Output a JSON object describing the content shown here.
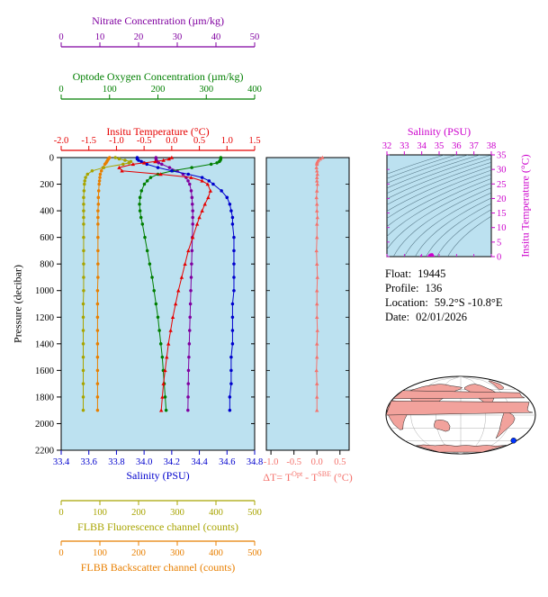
{
  "info": {
    "rows": [
      {
        "label": "Float:",
        "value": "19445"
      },
      {
        "label": "Profile:",
        "value": "136"
      },
      {
        "label": "Location:",
        "value": "59.2°S -10.8°E"
      },
      {
        "label": "Date:",
        "value": "02/01/2026"
      }
    ]
  },
  "chart_data": {
    "type": "line",
    "description": "Float vertical profiles vs pressure, temperature-difference profile, T-S diagram with isopycnals, and float location map",
    "pressure_levels": [
      0,
      10,
      20,
      30,
      40,
      50,
      75,
      100,
      125,
      150,
      175,
      200,
      250,
      300,
      350,
      400,
      450,
      500,
      600,
      700,
      800,
      900,
      1000,
      1100,
      1200,
      1300,
      1400,
      1500,
      1600,
      1700,
      1800,
      1900
    ],
    "pressure_axis": {
      "label": "Pressure (decibar)",
      "lim": [
        0,
        2200
      ],
      "ticks": [
        0,
        200,
        400,
        600,
        800,
        1000,
        1200,
        1400,
        1600,
        1800,
        2000,
        2200
      ]
    },
    "profile_plot": {
      "background": "#bce1f0",
      "x_axes": [
        {
          "id": "nitrate",
          "label": "Nitrate Concentration (µm/kg)",
          "color": "#8000a0",
          "lim": [
            0,
            50
          ],
          "ticks": [
            0,
            10,
            20,
            30,
            40,
            50
          ],
          "decimals": 0
        },
        {
          "id": "oxygen",
          "label": "Optode Oxygen Concentration (µm/kg)",
          "color": "#007f00",
          "lim": [
            0,
            400
          ],
          "ticks": [
            0,
            100,
            200,
            300,
            400
          ],
          "decimals": 0
        },
        {
          "id": "temperature",
          "label": "Insitu Temperature (°C)",
          "color": "#e60000",
          "lim": [
            -2,
            1.5
          ],
          "ticks": [
            -2,
            -1.5,
            -1,
            -0.5,
            0,
            0.5,
            1,
            1.5
          ],
          "decimals": 1
        },
        {
          "id": "salinity",
          "label": "Salinity (PSU)",
          "color": "#0000cd",
          "lim": [
            33.4,
            34.8
          ],
          "ticks": [
            33.4,
            33.6,
            33.8,
            34,
            34.2,
            34.4,
            34.6,
            34.8
          ],
          "decimals": 1
        },
        {
          "id": "fluorescence",
          "label": "FLBB Fluorescence channel (counts)",
          "color": "#a8a400",
          "lim": [
            0,
            500
          ],
          "ticks": [
            0,
            100,
            200,
            300,
            400,
            500
          ],
          "decimals": 0
        },
        {
          "id": "backscatter",
          "label": "FLBB Backscatter channel (counts)",
          "color": "#e87f00",
          "lim": [
            0,
            500
          ],
          "ticks": [
            0,
            100,
            200,
            300,
            400,
            500
          ],
          "decimals": 0
        }
      ],
      "series": [
        {
          "axis": "backscatter",
          "marker": "circle",
          "values": [
            125,
            122,
            120,
            118,
            116,
            113,
            108,
            104,
            101,
            100,
            99,
            98,
            97,
            96,
            96,
            95,
            95,
            95,
            95,
            95,
            95,
            95,
            94,
            94,
            94,
            94,
            94,
            94,
            94,
            94,
            94,
            94
          ]
        },
        {
          "axis": "fluorescence",
          "marker": "circle",
          "values": [
            140,
            150,
            165,
            180,
            175,
            160,
            110,
            80,
            68,
            63,
            61,
            60,
            59,
            58,
            58,
            58,
            58,
            58,
            58,
            58,
            58,
            58,
            58,
            57,
            57,
            57,
            57,
            57,
            57,
            57,
            57,
            57
          ]
        },
        {
          "axis": "nitrate",
          "marker": "circle",
          "values": [
            24.5,
            24.5,
            24.6,
            24.8,
            25.2,
            26,
            28,
            30,
            31.5,
            32.3,
            32.8,
            33.2,
            33.6,
            33.8,
            33.9,
            34,
            34,
            34,
            33.9,
            33.8,
            33.7,
            33.6,
            33.5,
            33.4,
            33.3,
            33.2,
            33.1,
            33,
            32.9,
            32.85,
            32.8,
            32.75
          ]
        },
        {
          "axis": "oxygen",
          "marker": "circle",
          "values": [
            330,
            330,
            329,
            327,
            322,
            310,
            270,
            230,
            200,
            185,
            178,
            172,
            166,
            163,
            162,
            163,
            165,
            168,
            173,
            178,
            183,
            188,
            192,
            196,
            200,
            203,
            206,
            209,
            211,
            213,
            215,
            217
          ]
        },
        {
          "axis": "salinity",
          "marker": "circle",
          "values": [
            33.95,
            33.95,
            33.96,
            33.98,
            34,
            34.02,
            34.1,
            34.2,
            34.32,
            34.42,
            34.47,
            34.5,
            34.56,
            34.6,
            34.62,
            34.63,
            34.64,
            34.64,
            34.65,
            34.65,
            34.65,
            34.65,
            34.65,
            34.64,
            34.64,
            34.64,
            34.64,
            34.63,
            34.63,
            34.63,
            34.62,
            34.62
          ]
        },
        {
          "axis": "temperature",
          "marker": "triangle",
          "values": [
            0,
            -0.05,
            -0.15,
            -0.3,
            -0.5,
            -0.7,
            -0.95,
            -0.9,
            -0.2,
            0.35,
            0.55,
            0.65,
            0.7,
            0.66,
            0.6,
            0.55,
            0.5,
            0.46,
            0.38,
            0.3,
            0.24,
            0.18,
            0.12,
            0.07,
            0.02,
            -0.02,
            -0.06,
            -0.09,
            -0.12,
            -0.15,
            -0.17,
            -0.19
          ]
        }
      ]
    },
    "delta_plot": {
      "xlabel_parts": {
        "p1": "ΔT= T",
        "s1": "Opt",
        "p2": " - T",
        "s2": "SBE",
        "p3": " (°C)"
      },
      "color": "#f4736d",
      "background": "#bce1f0",
      "lim": [
        -1.1,
        0.7
      ],
      "ticks": [
        -1,
        -0.5,
        0,
        0.5
      ],
      "values": [
        0.12,
        0.07,
        0.03,
        0.01,
        0,
        0,
        -0.01,
        0,
        0.01,
        0,
        0,
        0.01,
        0,
        -0.01,
        0,
        0,
        0.01,
        0,
        0,
        -0.01,
        0,
        0.01,
        0,
        0,
        0,
        0.01,
        0,
        0,
        -0.01,
        0,
        0,
        0
      ]
    },
    "ts_plot": {
      "xlabel": "Salinity (PSU)",
      "ylabel": "Insitu Temperature (°C)",
      "color": "#cc00cc",
      "background": "#bce1f0",
      "contour_color": "#3b5b6b",
      "xlim": [
        32,
        38
      ],
      "xticks": [
        32,
        33,
        34,
        35,
        36,
        37,
        38
      ],
      "ylim": [
        0,
        35
      ],
      "yticks": [
        0,
        5,
        10,
        15,
        20,
        25,
        30,
        35
      ],
      "sigma_levels": [
        20,
        20.5,
        21,
        21.5,
        22,
        22.5,
        23,
        23.5,
        24,
        24.5,
        25,
        25.5,
        26,
        26.5,
        27,
        27.5,
        28,
        28.5
      ]
    },
    "map": {
      "land_color": "#f2a29c",
      "ocean_color": "#ffffff",
      "outline_color": "#222222",
      "graticule_color": "#999999",
      "marker_color": "#0033ff",
      "center_lon": 180,
      "marker_lon": -10.8,
      "marker_lat": -59.2,
      "land": [
        [
          [
            14,
            54
          ],
          [
            30,
            60
          ],
          [
            45,
            66
          ],
          [
            70,
            70
          ],
          [
            95,
            72
          ],
          [
            120,
            71
          ],
          [
            145,
            68
          ],
          [
            170,
            66
          ],
          [
            185,
            64
          ],
          [
            178,
            60
          ],
          [
            165,
            57
          ],
          [
            158,
            52
          ],
          [
            148,
            47
          ],
          [
            138,
            42
          ],
          [
            128,
            36
          ],
          [
            120,
            28
          ],
          [
            110,
            20
          ],
          [
            102,
            10
          ],
          [
            96,
            6
          ],
          [
            92,
            14
          ],
          [
            84,
            20
          ],
          [
            76,
            10
          ],
          [
            68,
            16
          ],
          [
            60,
            26
          ],
          [
            50,
            36
          ],
          [
            38,
            42
          ],
          [
            26,
            46
          ],
          [
            16,
            48
          ]
        ],
        [
          [
            193,
            64
          ],
          [
            205,
            68
          ],
          [
            220,
            71
          ],
          [
            238,
            72
          ],
          [
            255,
            69
          ],
          [
            268,
            63
          ],
          [
            280,
            57
          ],
          [
            286,
            50
          ],
          [
            280,
            46
          ],
          [
            272,
            42
          ],
          [
            264,
            34
          ],
          [
            257,
            26
          ],
          [
            250,
            18
          ],
          [
            246,
            24
          ],
          [
            240,
            30
          ],
          [
            232,
            36
          ],
          [
            222,
            44
          ],
          [
            212,
            52
          ],
          [
            200,
            58
          ],
          [
            193,
            60
          ]
        ],
        [
          [
            304,
            60
          ],
          [
            310,
            72
          ],
          [
            320,
            79
          ],
          [
            334,
            80
          ],
          [
            338,
            72
          ],
          [
            328,
            64
          ],
          [
            315,
            60
          ]
        ],
        [
          [
            286,
            9
          ],
          [
            296,
            6
          ],
          [
            306,
            0
          ],
          [
            311,
            -8
          ],
          [
            309,
            -18
          ],
          [
            302,
            -28
          ],
          [
            295,
            -38
          ],
          [
            290,
            -48
          ],
          [
            286,
            -54
          ],
          [
            283,
            -46
          ],
          [
            281,
            -34
          ],
          [
            279,
            -20
          ],
          [
            280,
            -8
          ],
          [
            283,
            2
          ]
        ],
        [
          [
            0,
            34
          ],
          [
            12,
            33
          ],
          [
            24,
            31
          ],
          [
            36,
            22
          ],
          [
            46,
            11
          ],
          [
            51,
            2
          ],
          [
            44,
            -10
          ],
          [
            38,
            -20
          ],
          [
            30,
            -33
          ],
          [
            22,
            -34
          ],
          [
            14,
            -22
          ],
          [
            9,
            -8
          ],
          [
            2,
            6
          ],
          [
            0,
            16
          ]
        ],
        [
          [
            342,
            12
          ],
          [
            348,
            22
          ],
          [
            355,
            30
          ],
          [
            360,
            33
          ],
          [
            360,
            0
          ],
          [
            354,
            6
          ],
          [
            346,
            8
          ]
        ],
        [
          [
            348,
            44
          ],
          [
            354,
            52
          ],
          [
            360,
            57
          ],
          [
            360,
            38
          ],
          [
            352,
            40
          ]
        ],
        [
          [
            114,
            -22
          ],
          [
            118,
            -13
          ],
          [
            128,
            -11
          ],
          [
            138,
            -12
          ],
          [
            148,
            -16
          ],
          [
            153,
            -26
          ],
          [
            150,
            -35
          ],
          [
            140,
            -38
          ],
          [
            128,
            -34
          ],
          [
            118,
            -32
          ],
          [
            113,
            -28
          ]
        ],
        [
          [
            5,
            -71
          ],
          [
            40,
            -69
          ],
          [
            80,
            -71
          ],
          [
            120,
            -69
          ],
          [
            160,
            -72
          ],
          [
            200,
            -70
          ],
          [
            240,
            -72
          ],
          [
            280,
            -70
          ],
          [
            320,
            -72
          ],
          [
            355,
            -70
          ],
          [
            355,
            -86
          ],
          [
            5,
            -86
          ]
        ]
      ]
    }
  }
}
